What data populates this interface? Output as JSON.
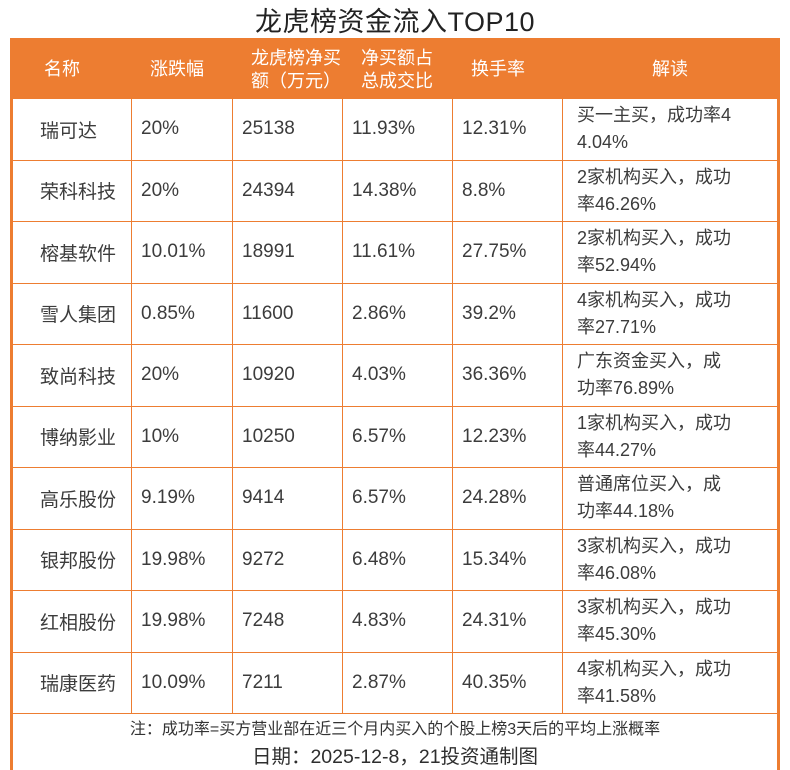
{
  "title": "龙虎榜资金流入TOP10",
  "colors": {
    "accent": "#ED7D31",
    "header_text": "#FFFFFF",
    "body_text": "#3C3C3C",
    "title_text": "#222222"
  },
  "chart_data": {
    "type": "table",
    "title": "龙虎榜资金流入TOP10",
    "columns": [
      "名称",
      "涨跌幅",
      "龙虎榜净买\n额（万元）",
      "净买额占\n总成交比",
      "换手率",
      "解读"
    ],
    "column_keys": [
      "name",
      "change-pct",
      "net-buy-amount",
      "net-buy-ratio",
      "turnover-rate",
      "interpretation"
    ],
    "rows": [
      [
        "瑞可达",
        "20%",
        "25138",
        "11.93%",
        "12.31%",
        "买一主买，成功率44.04%"
      ],
      [
        "荣科科技",
        "20%",
        "24394",
        "14.38%",
        "8.8%",
        "2家机构买入，成功率46.26%"
      ],
      [
        "榕基软件",
        "10.01%",
        "18991",
        "11.61%",
        "27.75%",
        "2家机构买入，成功率52.94%"
      ],
      [
        "雪人集团",
        "0.85%",
        "11600",
        "2.86%",
        "39.2%",
        "4家机构买入，成功率27.71%"
      ],
      [
        "致尚科技",
        "20%",
        "10920",
        "4.03%",
        "36.36%",
        "广东资金买入，成功率76.89%"
      ],
      [
        "博纳影业",
        "10%",
        "10250",
        "6.57%",
        "12.23%",
        "1家机构买入，成功率44.27%"
      ],
      [
        "高乐股份",
        "9.19%",
        "9414",
        "6.57%",
        "24.28%",
        "普通席位买入，成功率44.18%"
      ],
      [
        "银邦股份",
        "19.98%",
        "9272",
        "6.48%",
        "15.34%",
        "3家机构买入，成功率46.08%"
      ],
      [
        "红相股份",
        "19.98%",
        "7248",
        "4.83%",
        "24.31%",
        "3家机构买入，成功率45.30%"
      ],
      [
        "瑞康医药",
        "10.09%",
        "7211",
        "2.87%",
        "40.35%",
        "4家机构买入，成功率41.58%"
      ]
    ],
    "footnote": "注：成功率=买方营业部在近三个月内买入的个股上榜3天后的平均上涨概率",
    "date_line": "日期：2025-12-8，21投资通制图"
  }
}
